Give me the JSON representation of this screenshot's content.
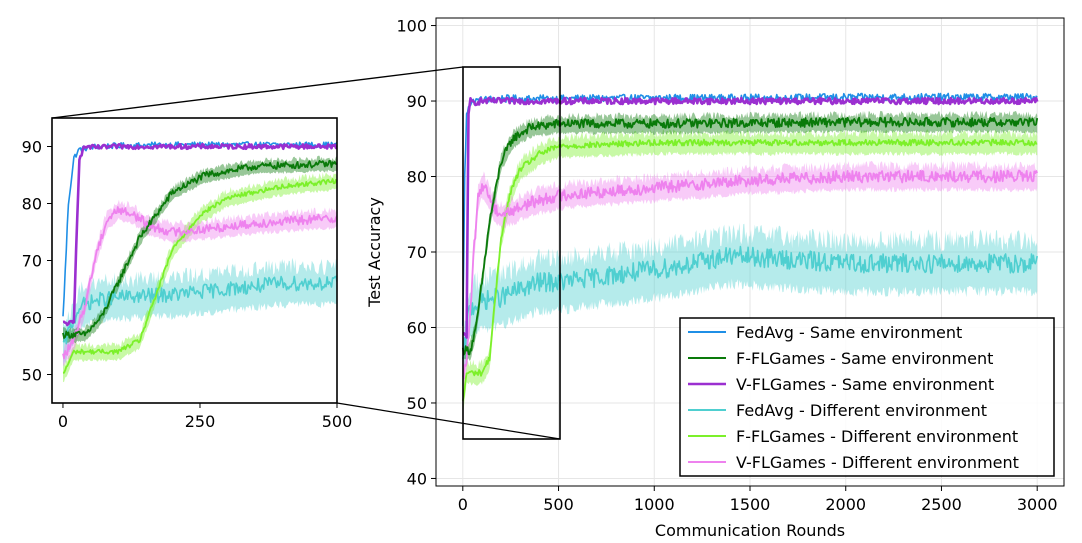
{
  "chart_data": [
    {
      "name": "main",
      "type": "line",
      "xlabel": "Communication Rounds",
      "ylabel": "Test Accuracy",
      "xlim": [
        -140,
        3140
      ],
      "ylim": [
        39,
        101
      ],
      "xticks": [
        0,
        500,
        1000,
        1500,
        2000,
        2500,
        3000
      ],
      "xtick_labels": [
        "0",
        "500",
        "1000",
        "1500",
        "2000",
        "2500",
        "3000"
      ],
      "yticks": [
        40,
        50,
        60,
        70,
        80,
        90,
        100
      ],
      "ytick_labels": [
        "40",
        "50",
        "60",
        "70",
        "80",
        "90",
        "100"
      ],
      "grid": true,
      "legend_position": "lower-right",
      "zoom_box": {
        "x": [
          0,
          500
        ],
        "y": [
          45,
          95
        ]
      },
      "series": [
        {
          "name": "FedAvg - Same environment",
          "color": "#1f8fe6",
          "width": 1.6,
          "band": 0.0,
          "noise": 0.5,
          "key_x": [
            0,
            10,
            20,
            30,
            60,
            120,
            200,
            500,
            1000,
            1500,
            2000,
            2500,
            3000
          ],
          "key_y": [
            60,
            80,
            88,
            89.5,
            90,
            90.2,
            90.3,
            90.3,
            90.4,
            90.4,
            90.5,
            90.5,
            90.5
          ]
        },
        {
          "name": "F-FLGames - Same environment",
          "color": "#0a7a0a",
          "width": 1.8,
          "band": 1.0,
          "noise": 0.6,
          "key_x": [
            0,
            40,
            70,
            100,
            140,
            200,
            260,
            350,
            500,
            1000,
            2000,
            3000
          ],
          "key_y": [
            57,
            57,
            60,
            66,
            74,
            82,
            85,
            86.5,
            87,
            87,
            87.2,
            87.2
          ]
        },
        {
          "name": "V-FLGames - Same environment",
          "color": "#9b2fd0",
          "width": 2.6,
          "band": 0.0,
          "noise": 0.4,
          "key_x": [
            0,
            20,
            25,
            30,
            40,
            60,
            100,
            500,
            1000,
            2000,
            3000
          ],
          "key_y": [
            59,
            59,
            75,
            88,
            90,
            89.8,
            90,
            90,
            90,
            90,
            90
          ]
        },
        {
          "name": "FedAvg - Different environment",
          "color": "#4fcfd0",
          "width": 1.6,
          "band": 3.0,
          "noise": 1.3,
          "key_x": [
            0,
            30,
            60,
            100,
            150,
            200,
            300,
            400,
            500,
            800,
            1100,
            1400,
            1700,
            2000,
            2300,
            2600,
            3000
          ],
          "key_y": [
            55,
            62,
            63,
            63.5,
            63.8,
            64,
            65,
            66,
            66,
            67,
            68,
            69.5,
            69,
            68.5,
            68.5,
            68.5,
            68.5
          ]
        },
        {
          "name": "F-FLGames - Different environment",
          "color": "#7cf02a",
          "width": 1.8,
          "band": 1.2,
          "noise": 0.4,
          "key_x": [
            0,
            20,
            100,
            140,
            170,
            200,
            250,
            300,
            400,
            500,
            1000,
            2000,
            3000
          ],
          "key_y": [
            50,
            54,
            54,
            56,
            64,
            72,
            78,
            81,
            83,
            84,
            84.5,
            84.5,
            84.5
          ]
        },
        {
          "name": "V-FLGames - Different environment",
          "color": "#ee82ee",
          "width": 1.8,
          "band": 1.4,
          "noise": 0.8,
          "key_x": [
            0,
            20,
            40,
            60,
            80,
            100,
            130,
            160,
            200,
            260,
            350,
            500,
            1000,
            1500,
            2000,
            2500,
            3000
          ],
          "key_y": [
            53,
            56,
            62,
            71,
            77,
            79,
            78,
            76,
            75,
            75.5,
            76.5,
            77.5,
            78.5,
            79.5,
            80,
            80,
            80
          ]
        }
      ]
    },
    {
      "name": "inset",
      "type": "line",
      "xlim": [
        -20,
        500
      ],
      "ylim": [
        45,
        95
      ],
      "xticks": [
        0,
        250,
        500
      ],
      "xtick_labels": [
        "0",
        "250",
        "500"
      ],
      "yticks": [
        50,
        60,
        70,
        80,
        90
      ],
      "ytick_labels": [
        "50",
        "60",
        "70",
        "80",
        "90"
      ],
      "grid": false
    }
  ]
}
